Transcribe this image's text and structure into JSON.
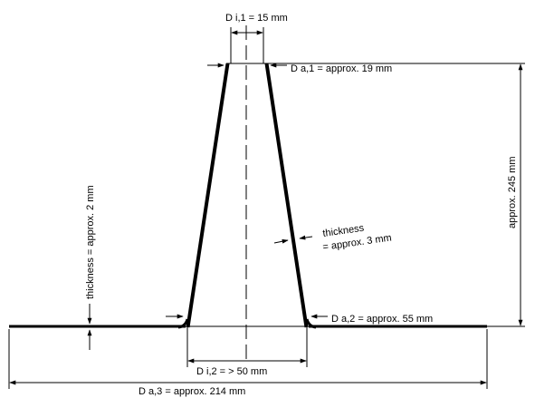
{
  "labels": {
    "d_i1": "D i,1 =  15 mm",
    "d_a1": "D a,1 = approx. 19 mm",
    "height": "approx. 245 mm",
    "thickness_cone_line1": "thickness",
    "thickness_cone_line2": "= approx. 3 mm",
    "thickness_base": "thickness = approx. 2 mm",
    "d_a2": "D a,2 = approx. 55 mm",
    "d_i2": "D i,2 = > 50 mm",
    "d_a3": "D a,3 = approx. 214 mm"
  },
  "colors": {
    "line": "#000000",
    "background": "#ffffff"
  }
}
